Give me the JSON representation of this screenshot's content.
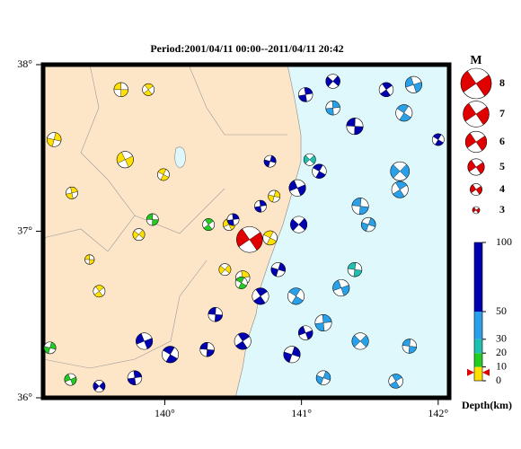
{
  "map": {
    "title": "Period:2001/04/11 00:00--2011/04/11 20:42",
    "xlim": [
      139.11,
      142.08
    ],
    "ylim": [
      36,
      38
    ],
    "xticks": [
      {
        "value": 140,
        "label": "140°"
      },
      {
        "value": 141,
        "label": "141°"
      },
      {
        "value": 142,
        "label": "142°"
      }
    ],
    "yticks": [
      {
        "value": 36,
        "label": "36°"
      },
      {
        "value": 37,
        "label": "37°"
      },
      {
        "value": 38,
        "label": "38°"
      }
    ],
    "land_color": "#fde6c8",
    "sea_color": "#dff8fb",
    "magnitude_label": "M",
    "legend_mags": [
      8,
      7,
      6,
      5,
      4,
      3
    ],
    "depth_label": "Depth(km)",
    "depth_ticks": [
      0,
      10,
      20,
      30,
      50,
      100
    ],
    "depth_colors": [
      "#ffe000",
      "#22cc22",
      "#20c0b0",
      "#2aa0e8",
      "#0000b0"
    ],
    "mainshock": {
      "lon": 140.62,
      "lat": 36.95,
      "mag": 7,
      "depth": 6,
      "color": "#e00000"
    },
    "events": [
      {
        "lon": 139.68,
        "lat": 37.85,
        "depth": 5,
        "mag": 4.5
      },
      {
        "lon": 139.88,
        "lat": 37.85,
        "depth": 6,
        "mag": 4
      },
      {
        "lon": 139.19,
        "lat": 37.55,
        "depth": 5,
        "mag": 4.5
      },
      {
        "lon": 139.71,
        "lat": 37.43,
        "depth": 7,
        "mag": 5
      },
      {
        "lon": 139.99,
        "lat": 37.34,
        "depth": 8,
        "mag": 4
      },
      {
        "lon": 139.32,
        "lat": 37.23,
        "depth": 5,
        "mag": 4
      },
      {
        "lon": 139.81,
        "lat": 36.98,
        "depth": 6,
        "mag": 4
      },
      {
        "lon": 139.45,
        "lat": 36.83,
        "depth": 7,
        "mag": 3.5
      },
      {
        "lon": 139.52,
        "lat": 36.64,
        "depth": 5,
        "mag": 4
      },
      {
        "lon": 140.8,
        "lat": 37.21,
        "depth": 8,
        "mag": 4
      },
      {
        "lon": 140.47,
        "lat": 37.04,
        "depth": 5,
        "mag": 4
      },
      {
        "lon": 140.77,
        "lat": 36.96,
        "depth": 6,
        "mag": 4.5
      },
      {
        "lon": 140.57,
        "lat": 36.72,
        "depth": 7,
        "mag": 4.5
      },
      {
        "lon": 140.44,
        "lat": 36.77,
        "depth": 5,
        "mag": 4
      },
      {
        "lon": 139.91,
        "lat": 37.07,
        "depth": 15,
        "mag": 4
      },
      {
        "lon": 140.32,
        "lat": 37.04,
        "depth": 15,
        "mag": 4
      },
      {
        "lon": 139.16,
        "lat": 36.3,
        "depth": 15,
        "mag": 4
      },
      {
        "lon": 139.31,
        "lat": 36.11,
        "depth": 15,
        "mag": 4
      },
      {
        "lon": 140.56,
        "lat": 36.69,
        "depth": 15,
        "mag": 4
      },
      {
        "lon": 141.03,
        "lat": 37.82,
        "depth": 70,
        "mag": 4.5
      },
      {
        "lon": 141.23,
        "lat": 37.9,
        "depth": 70,
        "mag": 4.5
      },
      {
        "lon": 141.39,
        "lat": 37.63,
        "depth": 60,
        "mag": 5
      },
      {
        "lon": 141.62,
        "lat": 37.85,
        "depth": 65,
        "mag": 4.5
      },
      {
        "lon": 140.77,
        "lat": 37.42,
        "depth": 80,
        "mag": 4
      },
      {
        "lon": 140.97,
        "lat": 37.26,
        "depth": 70,
        "mag": 5
      },
      {
        "lon": 141.13,
        "lat": 37.36,
        "depth": 60,
        "mag": 4.5
      },
      {
        "lon": 140.7,
        "lat": 37.15,
        "depth": 75,
        "mag": 4
      },
      {
        "lon": 140.98,
        "lat": 37.04,
        "depth": 65,
        "mag": 5
      },
      {
        "lon": 140.37,
        "lat": 36.5,
        "depth": 70,
        "mag": 4.5
      },
      {
        "lon": 140.7,
        "lat": 36.61,
        "depth": 60,
        "mag": 5
      },
      {
        "lon": 140.83,
        "lat": 36.77,
        "depth": 65,
        "mag": 4.5
      },
      {
        "lon": 139.85,
        "lat": 36.34,
        "depth": 70,
        "mag": 5
      },
      {
        "lon": 140.04,
        "lat": 36.26,
        "depth": 60,
        "mag": 5
      },
      {
        "lon": 139.78,
        "lat": 36.12,
        "depth": 70,
        "mag": 4.5
      },
      {
        "lon": 139.52,
        "lat": 36.07,
        "depth": 65,
        "mag": 4
      },
      {
        "lon": 140.31,
        "lat": 36.29,
        "depth": 60,
        "mag": 4.5
      },
      {
        "lon": 140.57,
        "lat": 36.34,
        "depth": 70,
        "mag": 5
      },
      {
        "lon": 140.93,
        "lat": 36.26,
        "depth": 65,
        "mag": 5
      },
      {
        "lon": 141.03,
        "lat": 36.39,
        "depth": 60,
        "mag": 4.5
      },
      {
        "lon": 142,
        "lat": 37.55,
        "depth": 70,
        "mag": 4
      },
      {
        "lon": 140.5,
        "lat": 37.07,
        "depth": 80,
        "mag": 4
      },
      {
        "lon": 141.72,
        "lat": 37.36,
        "depth": 40,
        "mag": 5.5
      },
      {
        "lon": 141.43,
        "lat": 37.15,
        "depth": 40,
        "mag": 5
      },
      {
        "lon": 141.72,
        "lat": 37.25,
        "depth": 45,
        "mag": 5
      },
      {
        "lon": 141.49,
        "lat": 37.04,
        "depth": 40,
        "mag": 4.5
      },
      {
        "lon": 141.29,
        "lat": 36.66,
        "depth": 45,
        "mag": 5
      },
      {
        "lon": 140.96,
        "lat": 36.61,
        "depth": 40,
        "mag": 5
      },
      {
        "lon": 141.16,
        "lat": 36.45,
        "depth": 45,
        "mag": 5
      },
      {
        "lon": 141.43,
        "lat": 36.34,
        "depth": 40,
        "mag": 5
      },
      {
        "lon": 141.79,
        "lat": 36.31,
        "depth": 45,
        "mag": 4.5
      },
      {
        "lon": 141.69,
        "lat": 36.1,
        "depth": 40,
        "mag": 4.5
      },
      {
        "lon": 141.16,
        "lat": 36.12,
        "depth": 45,
        "mag": 4.5
      },
      {
        "lon": 141.82,
        "lat": 37.88,
        "depth": 40,
        "mag": 5
      },
      {
        "lon": 141.75,
        "lat": 37.71,
        "depth": 45,
        "mag": 5
      },
      {
        "lon": 141.23,
        "lat": 37.74,
        "depth": 40,
        "mag": 4.5
      },
      {
        "lon": 141.06,
        "lat": 37.43,
        "depth": 25,
        "mag": 4
      },
      {
        "lon": 141.39,
        "lat": 36.77,
        "depth": 25,
        "mag": 4.5
      }
    ]
  }
}
